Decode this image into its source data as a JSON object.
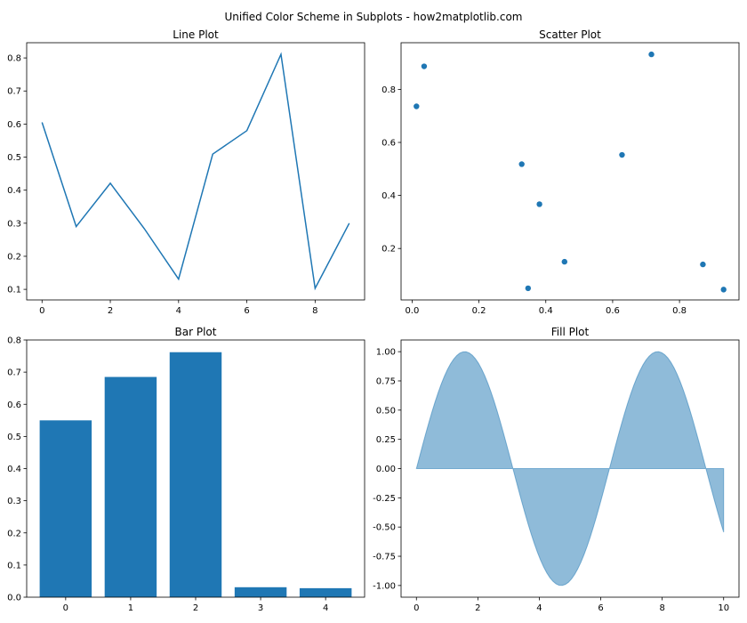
{
  "figure": {
    "suptitle": "Unified Color Scheme in Subplots - how2matplotlib.com",
    "color": "#1f77b4"
  },
  "chart_data": [
    {
      "type": "line",
      "title": "Line Plot",
      "xlabel": "",
      "ylabel": "",
      "x": [
        0,
        1,
        2,
        3,
        4,
        5,
        6,
        7,
        8,
        9
      ],
      "y": [
        0.605,
        0.29,
        0.421,
        0.283,
        0.131,
        0.509,
        0.58,
        0.811,
        0.103,
        0.3
      ],
      "xlim": [
        -0.45,
        9.45
      ],
      "ylim": [
        0.068,
        0.846
      ],
      "xticks": [
        0,
        2,
        4,
        6,
        8
      ],
      "xtick_labels": [
        "0",
        "2",
        "4",
        "6",
        "8"
      ],
      "yticks": [
        0.1,
        0.2,
        0.3,
        0.4,
        0.5,
        0.6,
        0.7,
        0.8
      ],
      "ytick_labels": [
        "0.1",
        "0.2",
        "0.3",
        "0.4",
        "0.5",
        "0.6",
        "0.7",
        "0.8"
      ],
      "grid": false
    },
    {
      "type": "scatter",
      "title": "Scatter Plot",
      "xlabel": "",
      "ylabel": "",
      "x": [
        0.013,
        0.036,
        0.328,
        0.347,
        0.381,
        0.456,
        0.628,
        0.716,
        0.87,
        0.932
      ],
      "y": [
        0.736,
        0.887,
        0.518,
        0.05,
        0.367,
        0.15,
        0.553,
        0.932,
        0.14,
        0.045
      ],
      "xlim": [
        -0.033,
        0.978
      ],
      "ylim": [
        0.006,
        0.976
      ],
      "xticks": [
        0.0,
        0.2,
        0.4,
        0.6,
        0.8
      ],
      "xtick_labels": [
        "0.0",
        "0.2",
        "0.4",
        "0.6",
        "0.8"
      ],
      "yticks": [
        0.2,
        0.4,
        0.6,
        0.8
      ],
      "ytick_labels": [
        "0.2",
        "0.4",
        "0.6",
        "0.8"
      ],
      "grid": false
    },
    {
      "type": "bar",
      "title": "Bar Plot",
      "xlabel": "",
      "ylabel": "",
      "categories": [
        "0",
        "1",
        "2",
        "3",
        "4"
      ],
      "values": [
        0.55,
        0.685,
        0.762,
        0.031,
        0.028
      ],
      "xlim": [
        -0.6,
        4.6
      ],
      "ylim": [
        0,
        0.8
      ],
      "yticks": [
        0.0,
        0.1,
        0.2,
        0.3,
        0.4,
        0.5,
        0.6,
        0.7,
        0.8
      ],
      "ytick_labels": [
        "0.0",
        "0.1",
        "0.2",
        "0.3",
        "0.4",
        "0.5",
        "0.6",
        "0.7",
        "0.8"
      ],
      "grid": false
    },
    {
      "type": "area",
      "title": "Fill Plot",
      "xlabel": "",
      "ylabel": "",
      "function": "sin(x)",
      "x_range": [
        0,
        10
      ],
      "baseline": 0,
      "alpha": 0.5,
      "xlim": [
        -0.5,
        10.5
      ],
      "ylim": [
        -1.1,
        1.1
      ],
      "xticks": [
        0,
        2,
        4,
        6,
        8,
        10
      ],
      "xtick_labels": [
        "0",
        "2",
        "4",
        "6",
        "8",
        "10"
      ],
      "yticks": [
        -1.0,
        -0.75,
        -0.5,
        -0.25,
        0.0,
        0.25,
        0.5,
        0.75,
        1.0
      ],
      "ytick_labels": [
        "-1.00",
        "-0.75",
        "-0.50",
        "-0.25",
        "0.00",
        "0.25",
        "0.50",
        "0.75",
        "1.00"
      ],
      "grid": false
    }
  ]
}
